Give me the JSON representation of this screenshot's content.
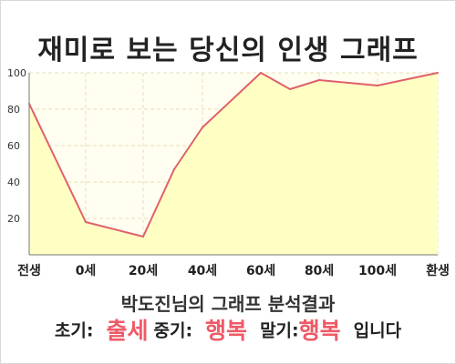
{
  "title": "재미로 보는 당신의 인생 그래프",
  "chart_data": {
    "type": "area",
    "x_labels": [
      "전생",
      "0세",
      "20세",
      "40세",
      "60세",
      "80세",
      "100세",
      "환생"
    ],
    "y_ticks": [
      20,
      40,
      60,
      80,
      100
    ],
    "ylim": [
      0,
      100
    ],
    "points": [
      {
        "x": "전생",
        "y": 83
      },
      {
        "x": "0세",
        "y": 18
      },
      {
        "x": "20세",
        "y": 10
      },
      {
        "x": "30세",
        "y": 47
      },
      {
        "x": "40세",
        "y": 70
      },
      {
        "x": "60세",
        "y": 100
      },
      {
        "x": "70세",
        "y": 91
      },
      {
        "x": "80세",
        "y": 96
      },
      {
        "x": "100세",
        "y": 93
      },
      {
        "x": "환생",
        "y": 100
      }
    ],
    "grid": true,
    "line_color": "#e0606a",
    "fill_color": "#ffffc4"
  },
  "result": {
    "heading": "박도진님의 그래프 분석결과",
    "early_label": "초기:",
    "early_value": "출세",
    "middle_label": "중기:",
    "middle_value": "행복",
    "late_label": "말기:",
    "late_value": "행복",
    "ending": "입니다"
  }
}
